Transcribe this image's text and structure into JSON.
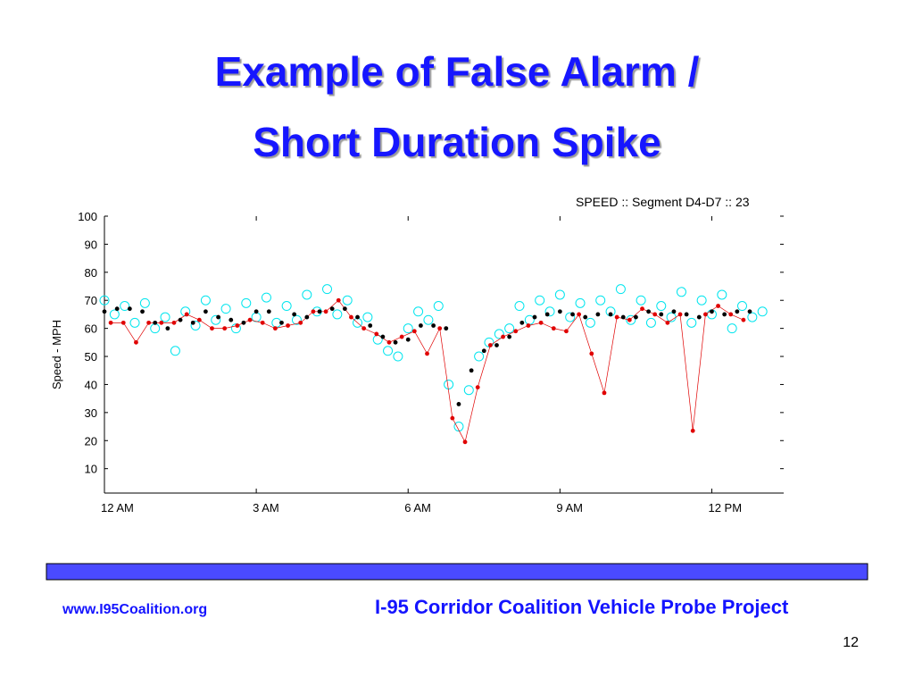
{
  "slide": {
    "title": [
      "Example of False Alarm /",
      "Short Duration Spike"
    ],
    "footer_left": "www.I95Coalition.org",
    "footer_right": "I-95 Corridor Coalition Vehicle Probe Project",
    "page_number": "12"
  },
  "chart_data": {
    "type": "scatter",
    "title": "SPEED ::  Segment D4-D7  :: 23",
    "ylabel": "Speed - MPH",
    "xlim": [
      0,
      13.42
    ],
    "xticks": [
      {
        "value": 0,
        "label": "12 AM"
      },
      {
        "value": 3,
        "label": "3 AM"
      },
      {
        "value": 6,
        "label": "6 AM"
      },
      {
        "value": 9,
        "label": "9 AM"
      },
      {
        "value": 12,
        "label": "12 PM"
      }
    ],
    "ylim": [
      1.3,
      100
    ],
    "yticks": [
      10,
      20,
      30,
      40,
      50,
      60,
      70,
      80,
      90,
      100
    ],
    "series": [
      {
        "color": "#00e5ee",
        "marker": "open-circle",
        "x": [
          0,
          0.2,
          0.4,
          0.6,
          0.8,
          1.0,
          1.2,
          1.4,
          1.6,
          1.8,
          2.0,
          2.2,
          2.4,
          2.6,
          2.8,
          3.0,
          3.2,
          3.4,
          3.6,
          3.8,
          4.0,
          4.2,
          4.4,
          4.6,
          4.8,
          5.0,
          5.2,
          5.4,
          5.6,
          5.8,
          6.0,
          6.2,
          6.4,
          6.6,
          6.8,
          7.0,
          7.2,
          7.4,
          7.6,
          7.8,
          8.0,
          8.2,
          8.4,
          8.6,
          8.8,
          9.0,
          9.2,
          9.4,
          9.6,
          9.8,
          10.0,
          10.2,
          10.4,
          10.6,
          10.8,
          11.0,
          11.2,
          11.4,
          11.6,
          11.8,
          12.0,
          12.2,
          12.4,
          12.6,
          12.8,
          13.0
        ],
        "values": [
          70,
          65,
          68,
          62,
          69,
          60,
          64,
          52,
          66,
          61,
          70,
          63,
          67,
          60,
          69,
          64,
          71,
          62,
          68,
          63,
          72,
          66,
          74,
          65,
          70,
          62,
          64,
          56,
          52,
          50,
          60,
          66,
          63,
          68,
          40,
          25,
          38,
          50,
          55,
          58,
          60,
          68,
          63,
          70,
          66,
          72,
          64,
          69,
          62,
          70,
          66,
          74,
          63,
          70,
          62,
          68,
          64,
          73,
          62,
          70,
          65,
          72,
          60,
          68,
          64,
          66
        ]
      },
      {
        "color": "#e00000",
        "marker": "dot",
        "line": true,
        "x": [
          0.125,
          0.375,
          0.625,
          0.875,
          1.125,
          1.375,
          1.625,
          1.875,
          2.125,
          2.375,
          2.625,
          2.875,
          3.125,
          3.375,
          3.625,
          3.875,
          4.125,
          4.375,
          4.625,
          4.875,
          5.125,
          5.375,
          5.625,
          5.875,
          6.125,
          6.375,
          6.625,
          6.875,
          7.125,
          7.375,
          7.625,
          7.875,
          8.125,
          8.375,
          8.625,
          8.875,
          9.125,
          9.375,
          9.625,
          9.875,
          10.125,
          10.375,
          10.625,
          10.875,
          11.125,
          11.375,
          11.625,
          11.875,
          12.125,
          12.375,
          12.625
        ],
        "values": [
          62,
          62,
          55,
          62,
          62,
          62,
          65,
          63,
          60,
          60,
          61,
          63,
          62,
          60,
          61,
          62,
          66,
          66,
          70,
          64,
          60,
          58,
          55,
          57,
          59,
          51,
          60,
          28,
          19.5,
          39,
          54,
          57,
          59,
          61,
          62,
          60,
          59,
          65,
          51,
          37,
          64,
          63,
          67,
          65,
          62,
          65,
          23.5,
          65,
          68,
          65,
          63
        ]
      },
      {
        "color": "#000000",
        "marker": "dot",
        "x": [
          0,
          0.25,
          0.5,
          0.75,
          1.0,
          1.25,
          1.5,
          1.75,
          2.0,
          2.25,
          2.5,
          2.75,
          3.0,
          3.25,
          3.5,
          3.75,
          4.0,
          4.25,
          4.5,
          4.75,
          5.0,
          5.25,
          5.5,
          5.75,
          6.0,
          6.25,
          6.5,
          6.75,
          7.0,
          7.25,
          7.5,
          7.75,
          8.0,
          8.25,
          8.5,
          8.75,
          9.0,
          9.25,
          9.5,
          9.75,
          10.0,
          10.25,
          10.5,
          10.75,
          11.0,
          11.25,
          11.5,
          11.75,
          12.0,
          12.25,
          12.5,
          12.75
        ],
        "values": [
          66,
          67,
          67,
          66,
          62,
          60,
          63,
          62,
          66,
          64,
          63,
          62,
          66,
          66,
          62,
          65,
          64,
          66,
          67,
          67,
          64,
          61,
          57,
          55,
          56,
          61,
          61,
          60,
          33,
          45,
          52,
          54,
          57,
          62,
          64,
          65,
          66,
          65,
          64,
          65,
          65,
          64,
          64,
          66,
          65,
          66,
          65,
          64,
          66,
          65,
          66,
          66
        ]
      }
    ]
  }
}
